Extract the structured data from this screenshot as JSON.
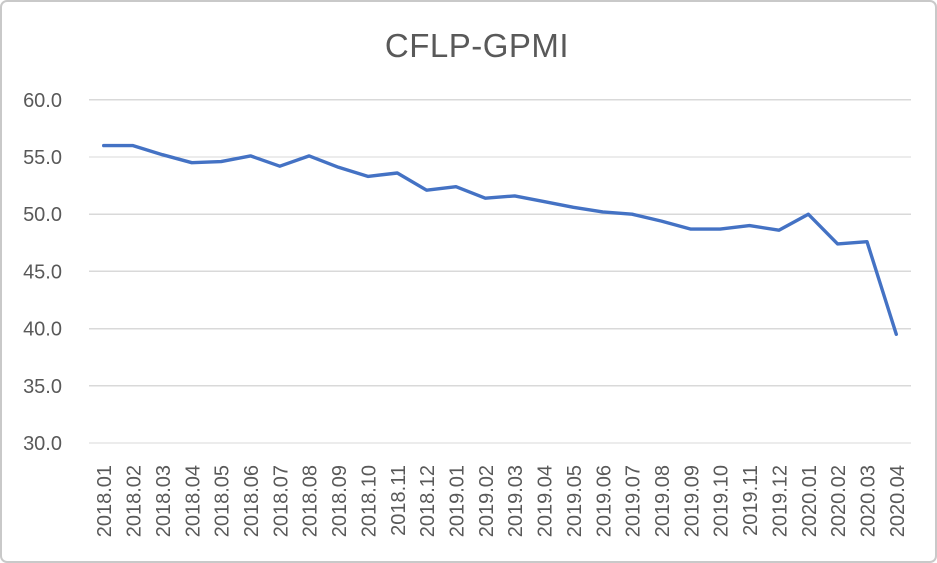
{
  "chart_data": {
    "type": "line",
    "title": "CFLP-GPMI",
    "xlabel": "",
    "ylabel": "",
    "legend": "none",
    "grid": "horizontal",
    "ylim": [
      30,
      60
    ],
    "ytick_step": 5,
    "ytick_decimals": 1,
    "categories": [
      "2018.01",
      "2018.02",
      "2018.03",
      "2018.04",
      "2018.05",
      "2018.06",
      "2018.07",
      "2018.08",
      "2018.09",
      "2018.10",
      "2018.11",
      "2018.12",
      "2019.01",
      "2019.02",
      "2019.03",
      "2019.04",
      "2019.05",
      "2019.06",
      "2019.07",
      "2019.08",
      "2019.09",
      "2019.10",
      "2019.11",
      "2019.12",
      "2020.01",
      "2020.02",
      "2020.03",
      "2020.04"
    ],
    "series": [
      {
        "name": "CFLP-GPMI",
        "values": [
          56.0,
          56.0,
          55.2,
          54.5,
          54.6,
          55.1,
          54.2,
          55.1,
          54.1,
          53.3,
          53.6,
          52.1,
          52.4,
          51.4,
          51.6,
          51.1,
          50.6,
          50.2,
          50.0,
          49.4,
          48.7,
          48.7,
          49.0,
          48.6,
          50.0,
          47.4,
          47.6,
          39.5
        ]
      }
    ],
    "colors": {
      "line": "#4472C4",
      "gridline": "#D9D9D9",
      "tick_text": "#595959",
      "title_text": "#595959",
      "background": "#FFFFFF",
      "frame_border": "#C9C9C9"
    }
  }
}
